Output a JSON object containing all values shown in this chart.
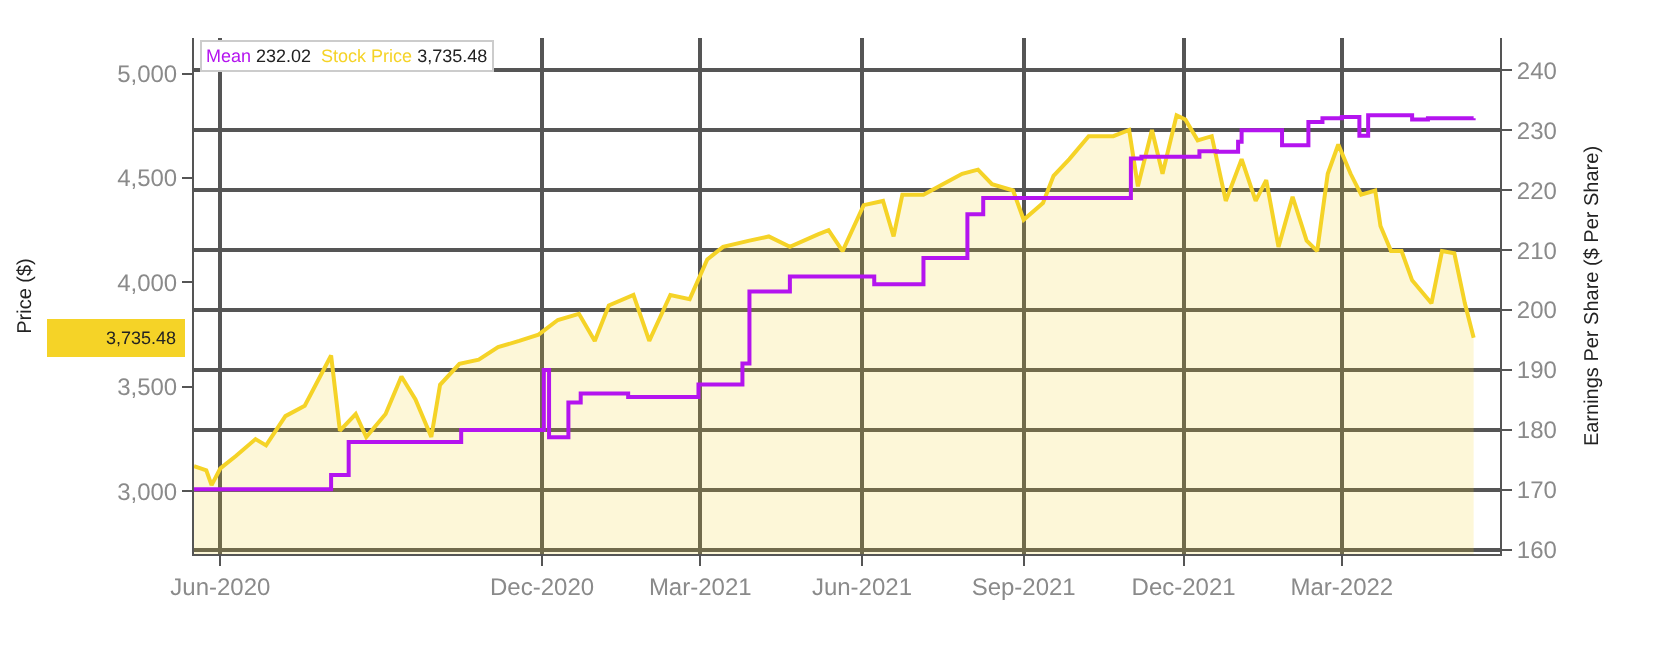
{
  "chart_data": {
    "type": "area",
    "ylabel": "Price ($)",
    "y2label": "Earnings Per Share ($ Per Share)",
    "xlim": [
      "2020-05-17",
      "2022-05-30"
    ],
    "xticks": [
      {
        "value": "2020-06-01",
        "label": "Jun-2020"
      },
      {
        "value": "2020-12-01",
        "label": "Dec-2020"
      },
      {
        "value": "2021-03-01",
        "label": "Mar-2021"
      },
      {
        "value": "2021-06-01",
        "label": "Jun-2021"
      },
      {
        "value": "2021-09-01",
        "label": "Sep-2021"
      },
      {
        "value": "2021-12-01",
        "label": "Dec-2021"
      },
      {
        "value": "2022-03-01",
        "label": "Mar-2022"
      }
    ],
    "ylim": [
      2700,
      5170
    ],
    "yticks": [
      {
        "value": 3000,
        "label": "3,000"
      },
      {
        "value": 3500,
        "label": "3,500"
      },
      {
        "value": 4000,
        "label": "4,000"
      },
      {
        "value": 4500,
        "label": "4,500"
      },
      {
        "value": 5000,
        "label": "5,000"
      }
    ],
    "y2lim": [
      159.3,
      245.4
    ],
    "y2ticks": [
      160,
      170,
      180,
      190,
      200,
      210,
      220,
      230,
      240
    ],
    "grid": true,
    "legend": "top left",
    "marker": "none",
    "annotations": [
      "232.02",
      "3,735.48",
      "3,735.48"
    ],
    "series": [
      {
        "name": "Mean",
        "type": "step",
        "axis": "y2",
        "color": "#b414ef",
        "x": [
          "2020-05-17",
          "2020-08-03",
          "2020-08-13",
          "2020-10-16",
          "2020-12-02",
          "2020-12-05",
          "2020-12-16",
          "2020-12-23",
          "2021-01-19",
          "2021-02-28",
          "2021-03-25",
          "2021-03-29",
          "2021-04-21",
          "2021-06-08",
          "2021-07-06",
          "2021-07-31",
          "2021-08-09",
          "2021-11-01",
          "2021-11-07",
          "2021-12-10",
          "2021-12-20",
          "2022-01-01",
          "2022-01-03",
          "2022-01-26",
          "2022-02-10",
          "2022-02-18",
          "2022-03-01",
          "2022-03-11",
          "2022-03-16",
          "2022-04-10",
          "2022-04-19",
          "2022-05-15"
        ],
        "values": [
          170.1,
          172.5,
          178.0,
          180.0,
          190.0,
          178.8,
          184.6,
          186.1,
          185.5,
          187.6,
          191.1,
          203.1,
          205.6,
          204.3,
          208.7,
          216.0,
          218.7,
          225.3,
          225.6,
          226.5,
          226.4,
          228.1,
          230.0,
          227.5,
          231.4,
          232.0,
          232.2,
          229.1,
          232.5,
          231.8,
          232.0,
          232.02
        ]
      },
      {
        "name": "Stock Price",
        "color": "#f5d327",
        "x": [
          "2020-05-17",
          "2020-05-24",
          "2020-05-27",
          "2020-06-01",
          "2020-06-10",
          "2020-06-21",
          "2020-06-27",
          "2020-07-08",
          "2020-07-19",
          "2020-08-03",
          "2020-08-08",
          "2020-08-17",
          "2020-08-23",
          "2020-09-03",
          "2020-09-12",
          "2020-09-20",
          "2020-09-29",
          "2020-10-04",
          "2020-10-15",
          "2020-10-26",
          "2020-11-06",
          "2020-11-18",
          "2020-11-29",
          "2020-12-10",
          "2020-12-22",
          "2020-12-31",
          "2021-01-08",
          "2021-01-22",
          "2021-01-31",
          "2021-02-12",
          "2021-02-23",
          "2021-03-05",
          "2021-03-14",
          "2021-03-29",
          "2021-04-09",
          "2021-04-21",
          "2021-05-07",
          "2021-05-13",
          "2021-05-21",
          "2021-06-02",
          "2021-06-13",
          "2021-06-19",
          "2021-06-24",
          "2021-07-06",
          "2021-07-17",
          "2021-07-28",
          "2021-08-06",
          "2021-08-14",
          "2021-08-26",
          "2021-09-01",
          "2021-09-12",
          "2021-09-18",
          "2021-09-27",
          "2021-10-08",
          "2021-10-22",
          "2021-10-31",
          "2021-11-05",
          "2021-11-13",
          "2021-11-19",
          "2021-11-27",
          "2021-12-02",
          "2021-12-09",
          "2021-12-17",
          "2021-12-25",
          "2022-01-03",
          "2022-01-11",
          "2022-01-17",
          "2022-01-24",
          "2022-02-01",
          "2022-02-09",
          "2022-02-15",
          "2022-02-21",
          "2022-02-27",
          "2022-03-06",
          "2022-03-12",
          "2022-03-20",
          "2022-03-23",
          "2022-03-29",
          "2022-04-04",
          "2022-04-10",
          "2022-04-18",
          "2022-04-21",
          "2022-04-27",
          "2022-05-04",
          "2022-05-09",
          "2022-05-10",
          "2022-05-15"
        ],
        "values": [
          3120,
          3100,
          3030,
          3110,
          3170,
          3250,
          3220,
          3360,
          3410,
          3650,
          3290,
          3370,
          3260,
          3370,
          3550,
          3440,
          3260,
          3510,
          3610,
          3630,
          3690,
          3720,
          3750,
          3820,
          3850,
          3720,
          3890,
          3940,
          3720,
          3940,
          3920,
          4110,
          4170,
          4200,
          4220,
          4170,
          4230,
          4250,
          4150,
          4370,
          4390,
          4220,
          4420,
          4420,
          4470,
          4520,
          4540,
          4470,
          4440,
          4300,
          4380,
          4510,
          4590,
          4700,
          4700,
          4730,
          4460,
          4730,
          4520,
          4800,
          4780,
          4680,
          4700,
          4390,
          4590,
          4390,
          4490,
          4170,
          4410,
          4200,
          4150,
          4520,
          4660,
          4520,
          4420,
          4440,
          4270,
          4150,
          4150,
          4010,
          3930,
          3900,
          4150,
          4140,
          3940,
          3900,
          3735.48
        ]
      }
    ]
  }
}
